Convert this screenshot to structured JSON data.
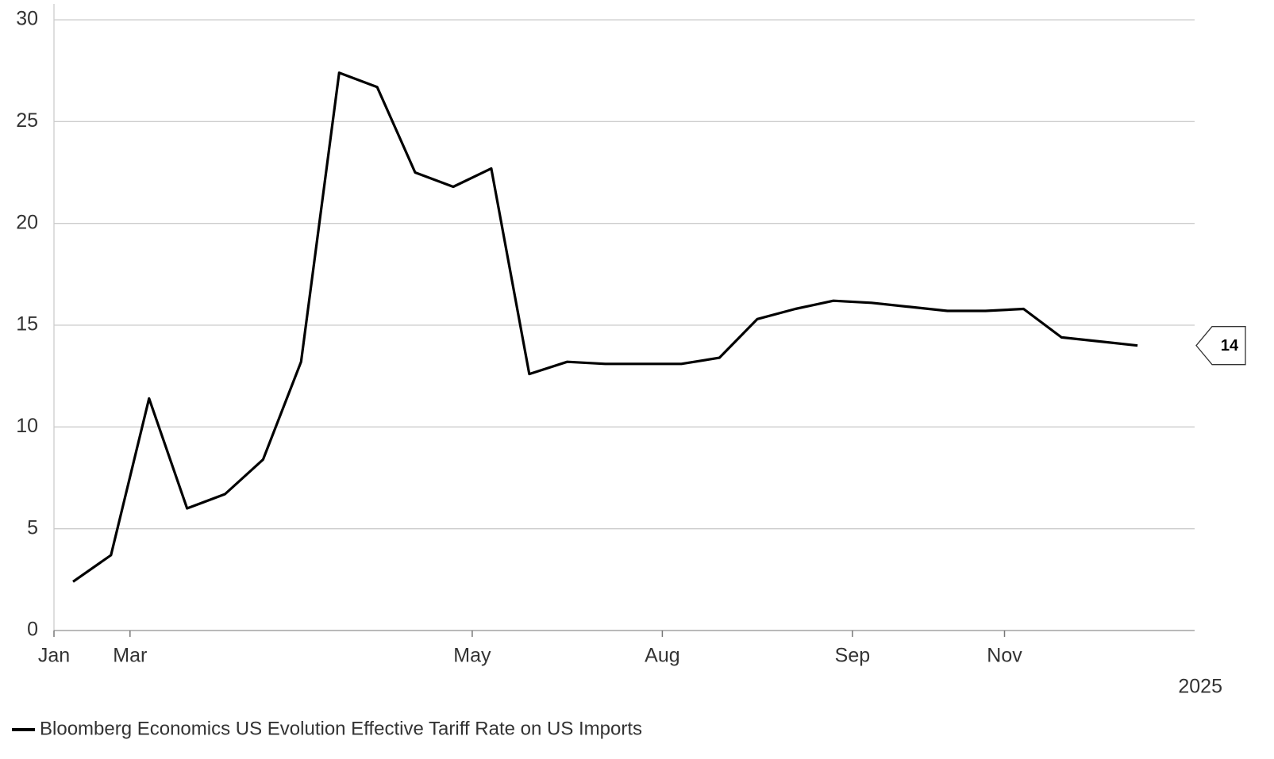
{
  "chart_data": {
    "type": "line",
    "categories": [
      "Jan",
      null,
      "Mar",
      null,
      null,
      null,
      null,
      null,
      null,
      null,
      null,
      "May",
      null,
      null,
      null,
      null,
      "Aug",
      null,
      null,
      null,
      null,
      "Sep",
      null,
      null,
      null,
      "Nov",
      null,
      null,
      null,
      null
    ],
    "series": [
      {
        "name": "Bloomberg Economics US Evolution Effective Tariff Rate on US Imports",
        "color": "#000000",
        "values": [
          2.4,
          3.7,
          11.4,
          6.0,
          6.7,
          8.4,
          13.2,
          27.4,
          26.7,
          22.5,
          21.8,
          22.7,
          12.6,
          13.2,
          13.1,
          13.1,
          13.1,
          13.4,
          15.3,
          15.8,
          16.2,
          16.1,
          15.9,
          15.7,
          15.7,
          15.8,
          14.4,
          14.2,
          14.0,
          null
        ],
        "value_labels": [
          null,
          null,
          null,
          null,
          null,
          null,
          null,
          null,
          null,
          null,
          null,
          null,
          null,
          null,
          null,
          null,
          null,
          null,
          null,
          null,
          null,
          null,
          null,
          null,
          null,
          null,
          null,
          null,
          "14",
          null
        ]
      }
    ],
    "ylim": [
      0,
      30
    ],
    "yticks": [
      0,
      5,
      10,
      15,
      20,
      25,
      30
    ],
    "grid": true,
    "xlabel": "2025"
  }
}
